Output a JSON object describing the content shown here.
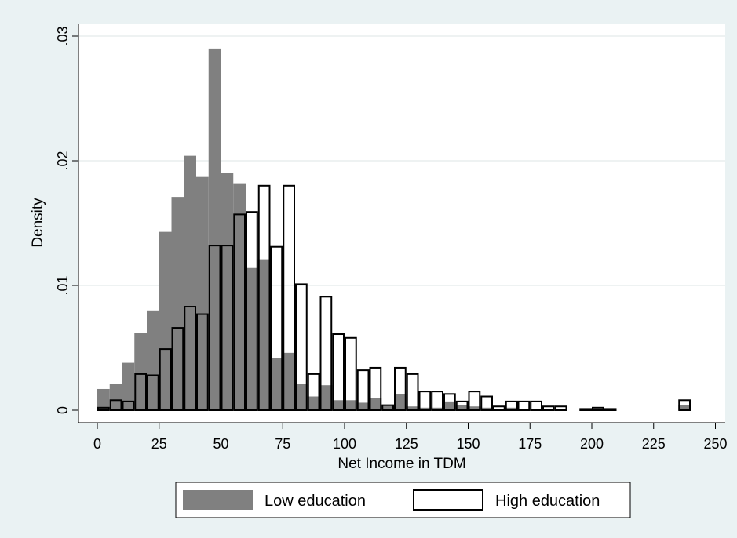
{
  "chart_data": {
    "type": "bar",
    "subtype": "overlaid-histogram",
    "title": "",
    "xlabel": "Net Income in TDM",
    "ylabel": "Density",
    "xlim": [
      0,
      250
    ],
    "ylim": [
      0,
      0.03
    ],
    "x_ticks": [
      0,
      25,
      50,
      75,
      100,
      125,
      150,
      175,
      200,
      225,
      250
    ],
    "x_tick_labels": [
      "0",
      "25",
      "50",
      "75",
      "100",
      "125",
      "150",
      "175",
      "200",
      "225",
      "250"
    ],
    "y_ticks": [
      0,
      0.01,
      0.02,
      0.03
    ],
    "y_tick_labels": [
      "0",
      ".01",
      ".02",
      ".03"
    ],
    "grid": "horizontal",
    "legend_position": "bottom",
    "bin_width": 5,
    "colors": {
      "low": "#808080",
      "high": "#ffffff",
      "outline": "#000000",
      "plot_bg": "#ffffff",
      "page_bg": "#eaf2f3",
      "grid": "#e8eeee"
    },
    "series": [
      {
        "name": "Low education",
        "style": "filled",
        "bins": [
          [
            0,
            0.0017
          ],
          [
            5,
            0.0021
          ],
          [
            10,
            0.0038
          ],
          [
            15,
            0.0062
          ],
          [
            20,
            0.008
          ],
          [
            25,
            0.0143
          ],
          [
            30,
            0.0171
          ],
          [
            35,
            0.0204
          ],
          [
            40,
            0.0187
          ],
          [
            45,
            0.029
          ],
          [
            50,
            0.019
          ],
          [
            55,
            0.0182
          ],
          [
            60,
            0.0114
          ],
          [
            65,
            0.0121
          ],
          [
            70,
            0.0042
          ],
          [
            75,
            0.0046
          ],
          [
            80,
            0.0021
          ],
          [
            85,
            0.0011
          ],
          [
            90,
            0.002
          ],
          [
            95,
            0.0008
          ],
          [
            100,
            0.0008
          ],
          [
            105,
            0.0006
          ],
          [
            110,
            0.001
          ],
          [
            115,
            0.0004
          ],
          [
            120,
            0.0013
          ],
          [
            125,
            0.0003
          ],
          [
            130,
            0.0002
          ],
          [
            135,
            0.0002
          ],
          [
            140,
            0.0007
          ],
          [
            145,
            0.0004
          ],
          [
            150,
            0.0003
          ],
          [
            155,
            0.0002
          ],
          [
            160,
            0.0001
          ],
          [
            165,
            0.0002
          ],
          [
            170,
            0.0001
          ],
          [
            175,
            0.0001
          ],
          [
            180,
            0.0001
          ],
          [
            185,
            0.0001
          ],
          [
            235,
            0.0004
          ]
        ]
      },
      {
        "name": "High education",
        "style": "outline",
        "bins": [
          [
            0,
            0.0002
          ],
          [
            5,
            0.0008
          ],
          [
            10,
            0.0007
          ],
          [
            15,
            0.0029
          ],
          [
            20,
            0.0028
          ],
          [
            25,
            0.0049
          ],
          [
            30,
            0.0066
          ],
          [
            35,
            0.0083
          ],
          [
            40,
            0.0077
          ],
          [
            45,
            0.0132
          ],
          [
            50,
            0.0132
          ],
          [
            55,
            0.0157
          ],
          [
            60,
            0.0159
          ],
          [
            65,
            0.018
          ],
          [
            70,
            0.0131
          ],
          [
            75,
            0.018
          ],
          [
            80,
            0.0101
          ],
          [
            85,
            0.0029
          ],
          [
            90,
            0.0091
          ],
          [
            95,
            0.0061
          ],
          [
            100,
            0.0058
          ],
          [
            105,
            0.0032
          ],
          [
            110,
            0.0034
          ],
          [
            115,
            0.0004
          ],
          [
            120,
            0.0034
          ],
          [
            125,
            0.0029
          ],
          [
            130,
            0.0015
          ],
          [
            135,
            0.0015
          ],
          [
            140,
            0.0013
          ],
          [
            145,
            0.0007
          ],
          [
            150,
            0.0015
          ],
          [
            155,
            0.0011
          ],
          [
            160,
            0.0003
          ],
          [
            165,
            0.0007
          ],
          [
            170,
            0.0007
          ],
          [
            175,
            0.0007
          ],
          [
            180,
            0.0003
          ],
          [
            185,
            0.0003
          ],
          [
            195,
            0.0001
          ],
          [
            200,
            0.0002
          ],
          [
            205,
            0.0001
          ],
          [
            235,
            0.0008
          ]
        ]
      }
    ]
  }
}
